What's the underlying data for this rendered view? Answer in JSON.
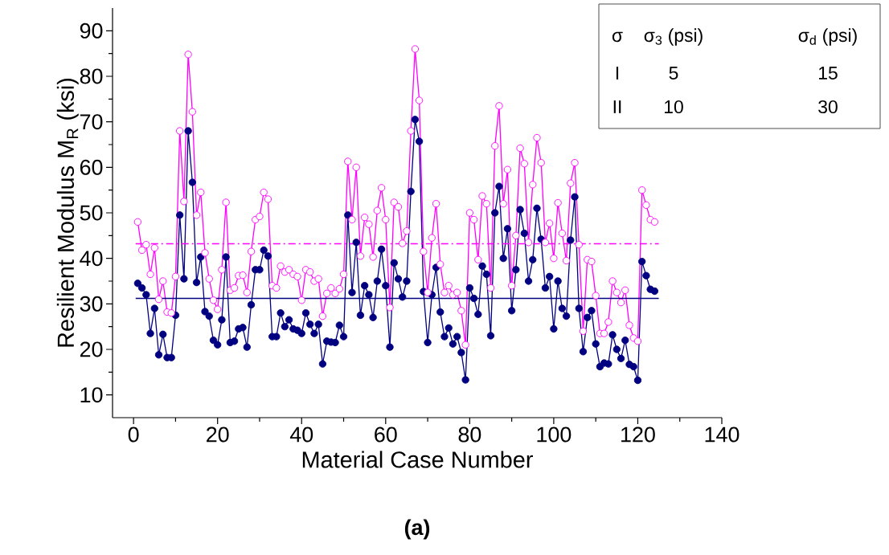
{
  "chart_data": {
    "type": "line",
    "title": "(a)",
    "xlabel": "Material Case Number",
    "ylabel": "Resilient Modulus M$_{R}$ (ksi)",
    "x": [
      1,
      2,
      3,
      4,
      5,
      6,
      7,
      8,
      9,
      10,
      11,
      12,
      13,
      14,
      15,
      16,
      17,
      18,
      19,
      20,
      21,
      22,
      23,
      24,
      25,
      26,
      27,
      28,
      29,
      30,
      31,
      32,
      33,
      34,
      35,
      36,
      37,
      38,
      39,
      40,
      41,
      42,
      43,
      44,
      45,
      46,
      47,
      48,
      49,
      50,
      51,
      52,
      53,
      54,
      55,
      56,
      57,
      58,
      59,
      60,
      61,
      62,
      63,
      64,
      65,
      66,
      67,
      68,
      69,
      70,
      71,
      72,
      73,
      74,
      75,
      76,
      77,
      78,
      79,
      80,
      81,
      82,
      83,
      84,
      85,
      86,
      87,
      88,
      89,
      90,
      91,
      92,
      93,
      94,
      95,
      96,
      97,
      98,
      99,
      100,
      101,
      102,
      103,
      104,
      105,
      106,
      107,
      108,
      109,
      110,
      111,
      112,
      113,
      114,
      115,
      116,
      117,
      118,
      119,
      120,
      121,
      122,
      123,
      124
    ],
    "series": [
      {
        "color": "#000080",
        "values": [
          34.5,
          33.5,
          32,
          23.5,
          29,
          18.8,
          23.3,
          18.2,
          18.2,
          27.5,
          49.5,
          35.5,
          68,
          56.7,
          34.7,
          40.3,
          28.3,
          27.3,
          22,
          21,
          26.5,
          40.3,
          21.5,
          21.8,
          24.5,
          24.8,
          20.5,
          29.8,
          37.5,
          37.5,
          41.8,
          40.5,
          22.8,
          22.8,
          28,
          25,
          26.5,
          24.5,
          24.2,
          23.5,
          28,
          25.5,
          23.5,
          25.5,
          16.8,
          21.8,
          21.6,
          21.5,
          25.3,
          22.8,
          49.5,
          32.5,
          43.5,
          27.5,
          34,
          32,
          27,
          35,
          42,
          34,
          20.5,
          39,
          35.5,
          31.5,
          35,
          54.7,
          70.5,
          65.7,
          32.7,
          21.5,
          32,
          38,
          28.2,
          22.8,
          24.7,
          21.2,
          22.8,
          19.3,
          13.3,
          33.5,
          31.2,
          27.7,
          38.3,
          36.5,
          23,
          50,
          55.8,
          40,
          46.5,
          28.5,
          37.5,
          50.7,
          45.5,
          35,
          39.7,
          51,
          44.2,
          33.5,
          36,
          24.5,
          35,
          29,
          27.3,
          44,
          53.5,
          29,
          19.5,
          27,
          28.5,
          21.2,
          16.2,
          17,
          16.8,
          23.2,
          20,
          18,
          22,
          16.7,
          16.2,
          13.2,
          39.3,
          36.2,
          33.2,
          32.8
        ]
      },
      {
        "color": "#ff00ff",
        "values": [
          48,
          41.8,
          43,
          36.5,
          42.3,
          31,
          35,
          28.2,
          28,
          36,
          68,
          52.5,
          84.8,
          72.2,
          49.5,
          54.5,
          41.2,
          35.5,
          30.8,
          28.8,
          37.5,
          52.3,
          33,
          33.5,
          36.2,
          36.3,
          32.5,
          41.5,
          48.5,
          49.2,
          54.5,
          53,
          34,
          33.5,
          38.3,
          37,
          37.5,
          36.5,
          36,
          30.8,
          37.5,
          37,
          35,
          35.5,
          27.3,
          32.3,
          33.5,
          32.3,
          33.3,
          36.5,
          61.3,
          48.5,
          60,
          40.5,
          49,
          47.5,
          40.3,
          50.5,
          55.5,
          48.5,
          29.2,
          52.3,
          51.3,
          43.3,
          46,
          68,
          86,
          74.7,
          41.5,
          32.5,
          44.5,
          52,
          38.7,
          32.5,
          34,
          32,
          32.5,
          28.5,
          21,
          50,
          48.5,
          39.7,
          53.7,
          52,
          33.5,
          64.7,
          73.5,
          52,
          59.5,
          34,
          45,
          64.2,
          60.8,
          43.5,
          56.2,
          66.5,
          61,
          43.5,
          47.7,
          40,
          52.2,
          45.5,
          39.5,
          56.5,
          61,
          43,
          24,
          39.7,
          39.3,
          31.8,
          23.5,
          23.5,
          26,
          35,
          32.5,
          30.3,
          33,
          25.3,
          22.5,
          21.8,
          55,
          51.7,
          48.5,
          48
        ]
      }
    ],
    "marker": "circle",
    "xlim": [
      -5,
      140
    ],
    "ylim": [
      5,
      95
    ],
    "xticks": [
      0,
      20,
      40,
      60,
      80,
      100,
      120,
      140
    ],
    "yticks": [
      10,
      20,
      30,
      40,
      50,
      60,
      70,
      80,
      90
    ],
    "ref_lines": [
      {
        "axis": "y",
        "value": 31.2,
        "color": "#000080",
        "line_style": "solid"
      },
      {
        "axis": "y",
        "value": 43.2,
        "color": "#ff00ff",
        "line_style": "dashdot"
      }
    ],
    "annotations": [
      "σ",
      "σ$_{3}$ (psi)",
      "σ$_{d}$ (psi)",
      "I",
      "5",
      "15",
      "II",
      "10",
      "30"
    ],
    "grid": false
  }
}
